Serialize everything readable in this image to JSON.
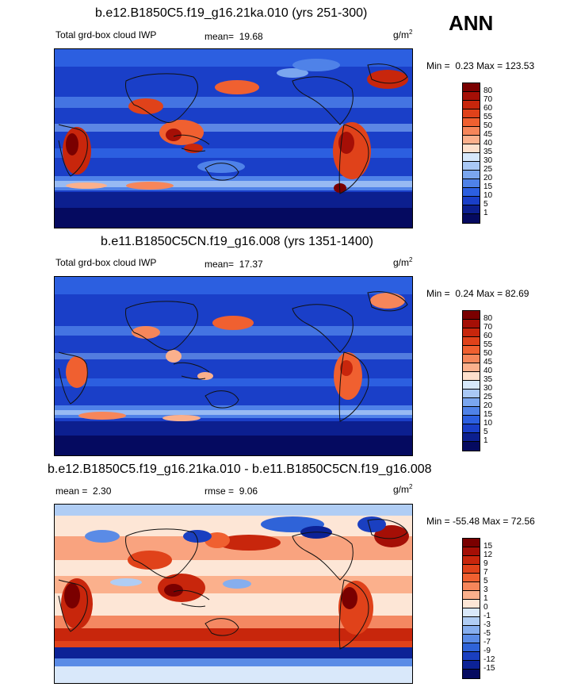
{
  "season": "ANN",
  "panels": [
    {
      "title": "b.e12.B1850C5.f19_g16.21ka.010 (yrs 251-300)",
      "left_label": "Total grd-box cloud IWP",
      "stat_label": "mean=",
      "stat_value": "19.68",
      "units": "g/m",
      "units_exp": "2",
      "min_label": "Min =",
      "min_value": "0.23",
      "max_label": "Max =",
      "max_value": "123.53",
      "colorbar_levels": [
        "80",
        "70",
        "60",
        "55",
        "50",
        "45",
        "40",
        "35",
        "30",
        "25",
        "20",
        "15",
        "10",
        "5",
        "1"
      ]
    },
    {
      "title": "b.e11.B1850C5CN.f19_g16.008 (yrs 1351-1400)",
      "left_label": "Total grd-box cloud IWP",
      "stat_label": "mean=",
      "stat_value": "17.37",
      "units": "g/m",
      "units_exp": "2",
      "min_label": "Min =",
      "min_value": "0.24",
      "max_label": "Max =",
      "max_value": "82.69",
      "colorbar_levels": [
        "80",
        "70",
        "60",
        "55",
        "50",
        "45",
        "40",
        "35",
        "30",
        "25",
        "20",
        "15",
        "10",
        "5",
        "1"
      ]
    },
    {
      "title": "b.e12.B1850C5.f19_g16.21ka.010 - b.e11.B1850C5CN.f19_g16.008",
      "left_label": "mean =",
      "left_value": "2.30",
      "stat_label": "rmse =",
      "stat_value": "9.06",
      "units": "g/m",
      "units_exp": "2",
      "min_label": "Min =",
      "min_value": "-55.48",
      "max_label": "Max =",
      "max_value": "72.56",
      "colorbar_levels": [
        "15",
        "12",
        "9",
        "7",
        "5",
        "3",
        "1",
        "0",
        "-1",
        "-3",
        "-5",
        "-7",
        "-9",
        "-12",
        "-15"
      ]
    }
  ],
  "colors": {
    "abs_scale": [
      "#7a0000",
      "#a50f06",
      "#c8260c",
      "#e0421a",
      "#f06030",
      "#f6865a",
      "#fbb08c",
      "#fde0cc",
      "#d6e8fb",
      "#a9c8f5",
      "#7aa6ef",
      "#4f82e8",
      "#2c5fe0",
      "#1a3fc8",
      "#0c1f8f",
      "#050a60"
    ],
    "diff_scale": [
      "#7a0000",
      "#a50f06",
      "#c8260c",
      "#e0421a",
      "#f06030",
      "#f6865a",
      "#fbb08c",
      "#fde6d6",
      "#d9e8fa",
      "#b0cdf4",
      "#86aeee",
      "#5a8be6",
      "#2f63d8",
      "#1a3fc0",
      "#0c2296",
      "#050a60"
    ],
    "land": "#111111"
  }
}
